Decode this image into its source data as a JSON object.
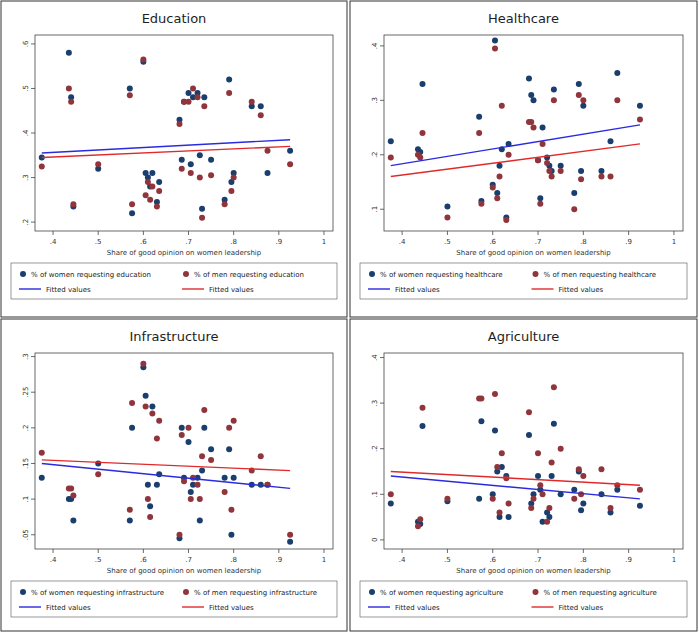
{
  "chart_data": [
    {
      "type": "scatter",
      "title": "Education",
      "x_label": "Share of good opinion on women leadership",
      "xlim": [
        0.36,
        1.02
      ],
      "xticks": [
        {
          "value": 0.4,
          "label": ".4"
        },
        {
          "value": 0.5,
          "label": ".5"
        },
        {
          "value": 0.6,
          "label": ".6"
        },
        {
          "value": 0.7,
          "label": ".7"
        },
        {
          "value": 0.8,
          "label": ".8"
        },
        {
          "value": 0.9,
          "label": ".9"
        },
        1
      ],
      "ylim": [
        0.18,
        0.62
      ],
      "yticks": [
        {
          "value": 0.2,
          "label": ".2"
        },
        {
          "value": 0.3,
          "label": ".3"
        },
        {
          "value": 0.4,
          "label": ".4"
        },
        {
          "value": 0.5,
          "label": ".5"
        },
        {
          "value": 0.6,
          "label": ".6"
        }
      ],
      "grid": false,
      "legend": "bottom",
      "series": [
        {
          "name": "% of women requesting education",
          "type": "scatter",
          "marker": "circle",
          "color": "#1a3f6e",
          "x": [
            0.375,
            0.435,
            0.44,
            0.445,
            0.5,
            0.57,
            0.575,
            0.6,
            0.605,
            0.61,
            0.615,
            0.62,
            0.63,
            0.635,
            0.68,
            0.685,
            0.69,
            0.7,
            0.705,
            0.71,
            0.72,
            0.725,
            0.73,
            0.735,
            0.75,
            0.78,
            0.79,
            0.795,
            0.8,
            0.84,
            0.86,
            0.875,
            0.925
          ],
          "values": [
            0.345,
            0.58,
            0.48,
            0.235,
            0.32,
            0.5,
            0.22,
            0.56,
            0.31,
            0.3,
            0.28,
            0.31,
            0.245,
            0.29,
            0.43,
            0.34,
            0.47,
            0.49,
            0.33,
            0.48,
            0.49,
            0.35,
            0.23,
            0.48,
            0.34,
            0.25,
            0.52,
            0.29,
            0.31,
            0.46,
            0.46,
            0.31,
            0.36
          ]
        },
        {
          "name": "% of men requesting education",
          "type": "scatter",
          "marker": "circle",
          "color": "#90353b",
          "x": [
            0.375,
            0.435,
            0.44,
            0.445,
            0.5,
            0.57,
            0.575,
            0.6,
            0.605,
            0.61,
            0.615,
            0.62,
            0.63,
            0.635,
            0.68,
            0.685,
            0.69,
            0.7,
            0.705,
            0.71,
            0.72,
            0.725,
            0.73,
            0.735,
            0.75,
            0.78,
            0.79,
            0.795,
            0.8,
            0.84,
            0.86,
            0.875,
            0.925
          ],
          "values": [
            0.325,
            0.5,
            0.47,
            0.24,
            0.33,
            0.485,
            0.24,
            0.565,
            0.26,
            0.29,
            0.25,
            0.28,
            0.235,
            0.27,
            0.42,
            0.32,
            0.47,
            0.47,
            0.31,
            0.5,
            0.48,
            0.3,
            0.21,
            0.46,
            0.305,
            0.24,
            0.49,
            0.27,
            0.3,
            0.47,
            0.44,
            0.36,
            0.33
          ]
        },
        {
          "name": "Fitted values",
          "type": "line",
          "line_style": "solid",
          "color": "#2a2ae0",
          "x": [
            0.375,
            0.925
          ],
          "values": [
            0.355,
            0.385
          ]
        },
        {
          "name": "Fitted values",
          "type": "line",
          "line_style": "solid",
          "color": "#e02a2a",
          "x": [
            0.375,
            0.925
          ],
          "values": [
            0.345,
            0.37
          ]
        }
      ]
    },
    {
      "type": "scatter",
      "title": "Healthcare",
      "x_label": "Share of good opinion on women leadership",
      "xlim": [
        0.36,
        1.02
      ],
      "xticks": [
        {
          "value": 0.4,
          "label": ".4"
        },
        {
          "value": 0.5,
          "label": ".5"
        },
        {
          "value": 0.6,
          "label": ".6"
        },
        {
          "value": 0.7,
          "label": ".7"
        },
        {
          "value": 0.8,
          "label": ".8"
        },
        {
          "value": 0.9,
          "label": ".9"
        },
        1
      ],
      "ylim": [
        0.06,
        0.42
      ],
      "yticks": [
        {
          "value": 0.1,
          "label": ".1"
        },
        {
          "value": 0.2,
          "label": ".2"
        },
        {
          "value": 0.3,
          "label": ".3"
        },
        {
          "value": 0.4,
          "label": ".4"
        }
      ],
      "grid": false,
      "legend": "bottom",
      "series": [
        {
          "name": "% of women requesting healthcare",
          "type": "scatter",
          "marker": "circle",
          "color": "#1a3f6e",
          "x": [
            0.375,
            0.435,
            0.44,
            0.445,
            0.5,
            0.57,
            0.575,
            0.6,
            0.605,
            0.61,
            0.615,
            0.62,
            0.63,
            0.635,
            0.68,
            0.685,
            0.69,
            0.7,
            0.705,
            0.71,
            0.72,
            0.725,
            0.73,
            0.735,
            0.75,
            0.78,
            0.79,
            0.795,
            0.8,
            0.84,
            0.86,
            0.875,
            0.925
          ],
          "values": [
            0.225,
            0.21,
            0.205,
            0.33,
            0.105,
            0.27,
            0.115,
            0.145,
            0.41,
            0.13,
            0.18,
            0.21,
            0.085,
            0.22,
            0.34,
            0.31,
            0.3,
            0.19,
            0.12,
            0.25,
            0.195,
            0.18,
            0.17,
            0.32,
            0.18,
            0.13,
            0.33,
            0.17,
            0.29,
            0.17,
            0.225,
            0.35,
            0.29
          ]
        },
        {
          "name": "% of men requesting healthcare",
          "type": "scatter",
          "marker": "circle",
          "color": "#90353b",
          "x": [
            0.375,
            0.435,
            0.44,
            0.445,
            0.5,
            0.57,
            0.575,
            0.6,
            0.605,
            0.61,
            0.615,
            0.62,
            0.63,
            0.635,
            0.68,
            0.685,
            0.69,
            0.7,
            0.705,
            0.71,
            0.72,
            0.725,
            0.73,
            0.735,
            0.75,
            0.78,
            0.79,
            0.795,
            0.8,
            0.84,
            0.86,
            0.875,
            0.925
          ],
          "values": [
            0.195,
            0.2,
            0.195,
            0.24,
            0.085,
            0.24,
            0.11,
            0.14,
            0.395,
            0.12,
            0.16,
            0.29,
            0.08,
            0.2,
            0.26,
            0.26,
            0.25,
            0.19,
            0.11,
            0.22,
            0.185,
            0.17,
            0.16,
            0.3,
            0.17,
            0.1,
            0.31,
            0.155,
            0.3,
            0.16,
            0.16,
            0.3,
            0.265
          ]
        },
        {
          "name": "Fitted values",
          "type": "line",
          "line_style": "solid",
          "color": "#2a2ae0",
          "x": [
            0.375,
            0.925
          ],
          "values": [
            0.18,
            0.255
          ]
        },
        {
          "name": "Fitted values",
          "type": "line",
          "line_style": "solid",
          "color": "#e02a2a",
          "x": [
            0.375,
            0.925
          ],
          "values": [
            0.16,
            0.22
          ]
        }
      ]
    },
    {
      "type": "scatter",
      "title": "Infrastructure",
      "x_label": "Share of good opinion on women leadership",
      "xlim": [
        0.36,
        1.02
      ],
      "xticks": [
        {
          "value": 0.4,
          "label": ".4"
        },
        {
          "value": 0.5,
          "label": ".5"
        },
        {
          "value": 0.6,
          "label": ".6"
        },
        {
          "value": 0.7,
          "label": ".7"
        },
        {
          "value": 0.8,
          "label": ".8"
        },
        {
          "value": 0.9,
          "label": ".9"
        },
        1
      ],
      "ylim": [
        0.03,
        0.305
      ],
      "yticks": [
        {
          "value": 0.05,
          "label": ".05"
        },
        {
          "value": 0.1,
          "label": ".1"
        },
        {
          "value": 0.15,
          "label": ".15"
        },
        {
          "value": 0.2,
          "label": ".2"
        },
        {
          "value": 0.25,
          "label": ".25"
        },
        {
          "value": 0.3,
          "label": ".3"
        }
      ],
      "grid": false,
      "legend": "bottom",
      "series": [
        {
          "name": "% of women requesting infrastructure",
          "type": "scatter",
          "marker": "circle",
          "color": "#1a3f6e",
          "x": [
            0.375,
            0.435,
            0.44,
            0.445,
            0.5,
            0.57,
            0.575,
            0.6,
            0.605,
            0.61,
            0.615,
            0.62,
            0.63,
            0.635,
            0.68,
            0.685,
            0.69,
            0.7,
            0.705,
            0.71,
            0.72,
            0.725,
            0.73,
            0.735,
            0.75,
            0.78,
            0.79,
            0.795,
            0.8,
            0.84,
            0.86,
            0.875,
            0.925
          ],
          "values": [
            0.13,
            0.1,
            0.1,
            0.07,
            0.15,
            0.07,
            0.2,
            0.285,
            0.245,
            0.12,
            0.09,
            0.23,
            0.12,
            0.135,
            0.045,
            0.2,
            0.13,
            0.18,
            0.11,
            0.12,
            0.13,
            0.07,
            0.14,
            0.2,
            0.17,
            0.13,
            0.17,
            0.05,
            0.13,
            0.12,
            0.12,
            0.12,
            0.04
          ]
        },
        {
          "name": "% of men requesting infrastructure",
          "type": "scatter",
          "marker": "circle",
          "color": "#90353b",
          "x": [
            0.375,
            0.435,
            0.44,
            0.445,
            0.5,
            0.57,
            0.575,
            0.6,
            0.605,
            0.61,
            0.615,
            0.62,
            0.63,
            0.635,
            0.68,
            0.685,
            0.69,
            0.7,
            0.705,
            0.71,
            0.72,
            0.725,
            0.73,
            0.735,
            0.75,
            0.78,
            0.79,
            0.795,
            0.8,
            0.84,
            0.86,
            0.875,
            0.925
          ],
          "values": [
            0.165,
            0.115,
            0.115,
            0.105,
            0.135,
            0.085,
            0.235,
            0.29,
            0.23,
            0.1,
            0.075,
            0.22,
            0.185,
            0.21,
            0.05,
            0.19,
            0.125,
            0.2,
            0.1,
            0.13,
            0.12,
            0.1,
            0.16,
            0.225,
            0.155,
            0.11,
            0.2,
            0.085,
            0.21,
            0.14,
            0.16,
            0.12,
            0.05
          ]
        },
        {
          "name": "Fitted values",
          "type": "line",
          "line_style": "solid",
          "color": "#2a2ae0",
          "x": [
            0.375,
            0.925
          ],
          "values": [
            0.15,
            0.115
          ]
        },
        {
          "name": "Fitted values",
          "type": "line",
          "line_style": "solid",
          "color": "#e02a2a",
          "x": [
            0.375,
            0.925
          ],
          "values": [
            0.155,
            0.14
          ]
        }
      ]
    },
    {
      "type": "scatter",
      "title": "Agriculture",
      "x_label": "Share of good opinion on women leadership",
      "xlim": [
        0.36,
        1.02
      ],
      "xticks": [
        {
          "value": 0.4,
          "label": ".4"
        },
        {
          "value": 0.5,
          "label": ".5"
        },
        {
          "value": 0.6,
          "label": ".6"
        },
        {
          "value": 0.7,
          "label": ".7"
        },
        {
          "value": 0.8,
          "label": ".8"
        },
        {
          "value": 0.9,
          "label": ".9"
        },
        1
      ],
      "ylim": [
        -0.02,
        0.41
      ],
      "yticks": [
        0,
        {
          "value": 0.1,
          "label": ".1"
        },
        {
          "value": 0.2,
          "label": ".2"
        },
        {
          "value": 0.3,
          "label": ".3"
        },
        {
          "value": 0.4,
          "label": ".4"
        }
      ],
      "grid": false,
      "legend": "bottom",
      "series": [
        {
          "name": "% of women requesting agriculture",
          "type": "scatter",
          "marker": "circle",
          "color": "#1a3f6e",
          "x": [
            0.375,
            0.435,
            0.44,
            0.445,
            0.5,
            0.57,
            0.575,
            0.6,
            0.605,
            0.61,
            0.615,
            0.62,
            0.63,
            0.635,
            0.68,
            0.685,
            0.69,
            0.7,
            0.705,
            0.71,
            0.72,
            0.725,
            0.73,
            0.735,
            0.75,
            0.78,
            0.79,
            0.795,
            0.8,
            0.84,
            0.86,
            0.875,
            0.925
          ],
          "values": [
            0.08,
            0.04,
            0.035,
            0.25,
            0.085,
            0.09,
            0.26,
            0.1,
            0.24,
            0.15,
            0.05,
            0.16,
            0.14,
            0.05,
            0.23,
            0.08,
            0.1,
            0.14,
            0.11,
            0.04,
            0.06,
            0.05,
            0.14,
            0.255,
            0.1,
            0.11,
            0.15,
            0.065,
            0.08,
            0.1,
            0.06,
            0.11,
            0.075
          ]
        },
        {
          "name": "% of men requesting agriculture",
          "type": "scatter",
          "marker": "circle",
          "color": "#90353b",
          "x": [
            0.375,
            0.435,
            0.44,
            0.445,
            0.5,
            0.57,
            0.575,
            0.6,
            0.605,
            0.61,
            0.615,
            0.62,
            0.63,
            0.635,
            0.68,
            0.685,
            0.69,
            0.7,
            0.705,
            0.71,
            0.72,
            0.725,
            0.73,
            0.735,
            0.75,
            0.78,
            0.79,
            0.795,
            0.8,
            0.84,
            0.86,
            0.875,
            0.925
          ],
          "values": [
            0.1,
            0.03,
            0.045,
            0.29,
            0.09,
            0.31,
            0.31,
            0.09,
            0.32,
            0.16,
            0.06,
            0.19,
            0.135,
            0.08,
            0.28,
            0.07,
            0.09,
            0.19,
            0.12,
            0.1,
            0.04,
            0.07,
            0.17,
            0.335,
            0.2,
            0.09,
            0.155,
            0.1,
            0.14,
            0.155,
            0.07,
            0.12,
            0.11
          ]
        },
        {
          "name": "Fitted values",
          "type": "line",
          "line_style": "solid",
          "color": "#2a2ae0",
          "x": [
            0.375,
            0.925
          ],
          "values": [
            0.14,
            0.09
          ]
        },
        {
          "name": "Fitted values",
          "type": "line",
          "line_style": "solid",
          "color": "#e02a2a",
          "x": [
            0.375,
            0.925
          ],
          "values": [
            0.15,
            0.12
          ]
        }
      ]
    }
  ]
}
